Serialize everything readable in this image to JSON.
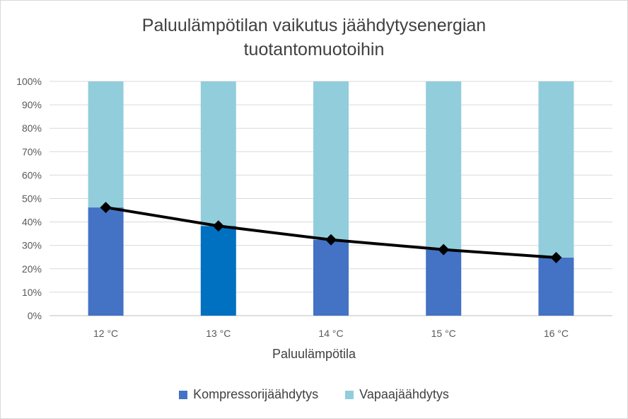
{
  "chart_data": {
    "type": "bar",
    "stacked": true,
    "title_lines": [
      "Paluulämpötilan vaikutus jäähdytysenergian",
      "tuotantomuotoihin"
    ],
    "xlabel": "Paluulämpötila",
    "ylabel": "",
    "ylim": [
      0,
      100
    ],
    "yticks": [
      "0%",
      "10%",
      "20%",
      "30%",
      "40%",
      "50%",
      "60%",
      "70%",
      "80%",
      "90%",
      "100%"
    ],
    "categories": [
      "12 °C",
      "13 °C",
      "14 °C",
      "15 °C",
      "16 °C"
    ],
    "series": [
      {
        "name": "Kompressorijäähdytys",
        "values": [
          46.2,
          38.3,
          32.4,
          28.2,
          24.8
        ],
        "color": "#4472c4",
        "point_colors": [
          "#4472c4",
          "#0070c0",
          "#4472c4",
          "#4472c4",
          "#4472c4"
        ]
      },
      {
        "name": "Vapaajäähdytys",
        "values": [
          53.8,
          61.7,
          67.6,
          71.8,
          75.2
        ],
        "color": "#92cddc"
      }
    ],
    "overlay_line": {
      "type": "line",
      "values": [
        46.2,
        38.3,
        32.4,
        28.2,
        24.8
      ],
      "color": "#000000",
      "marker": "diamond"
    },
    "grid": true,
    "legend_position": "bottom"
  },
  "legend": {
    "items": [
      {
        "label": "Kompressorijäähdytys",
        "color": "#4472c4"
      },
      {
        "label": "Vapaajäähdytys",
        "color": "#92cddc"
      }
    ]
  }
}
